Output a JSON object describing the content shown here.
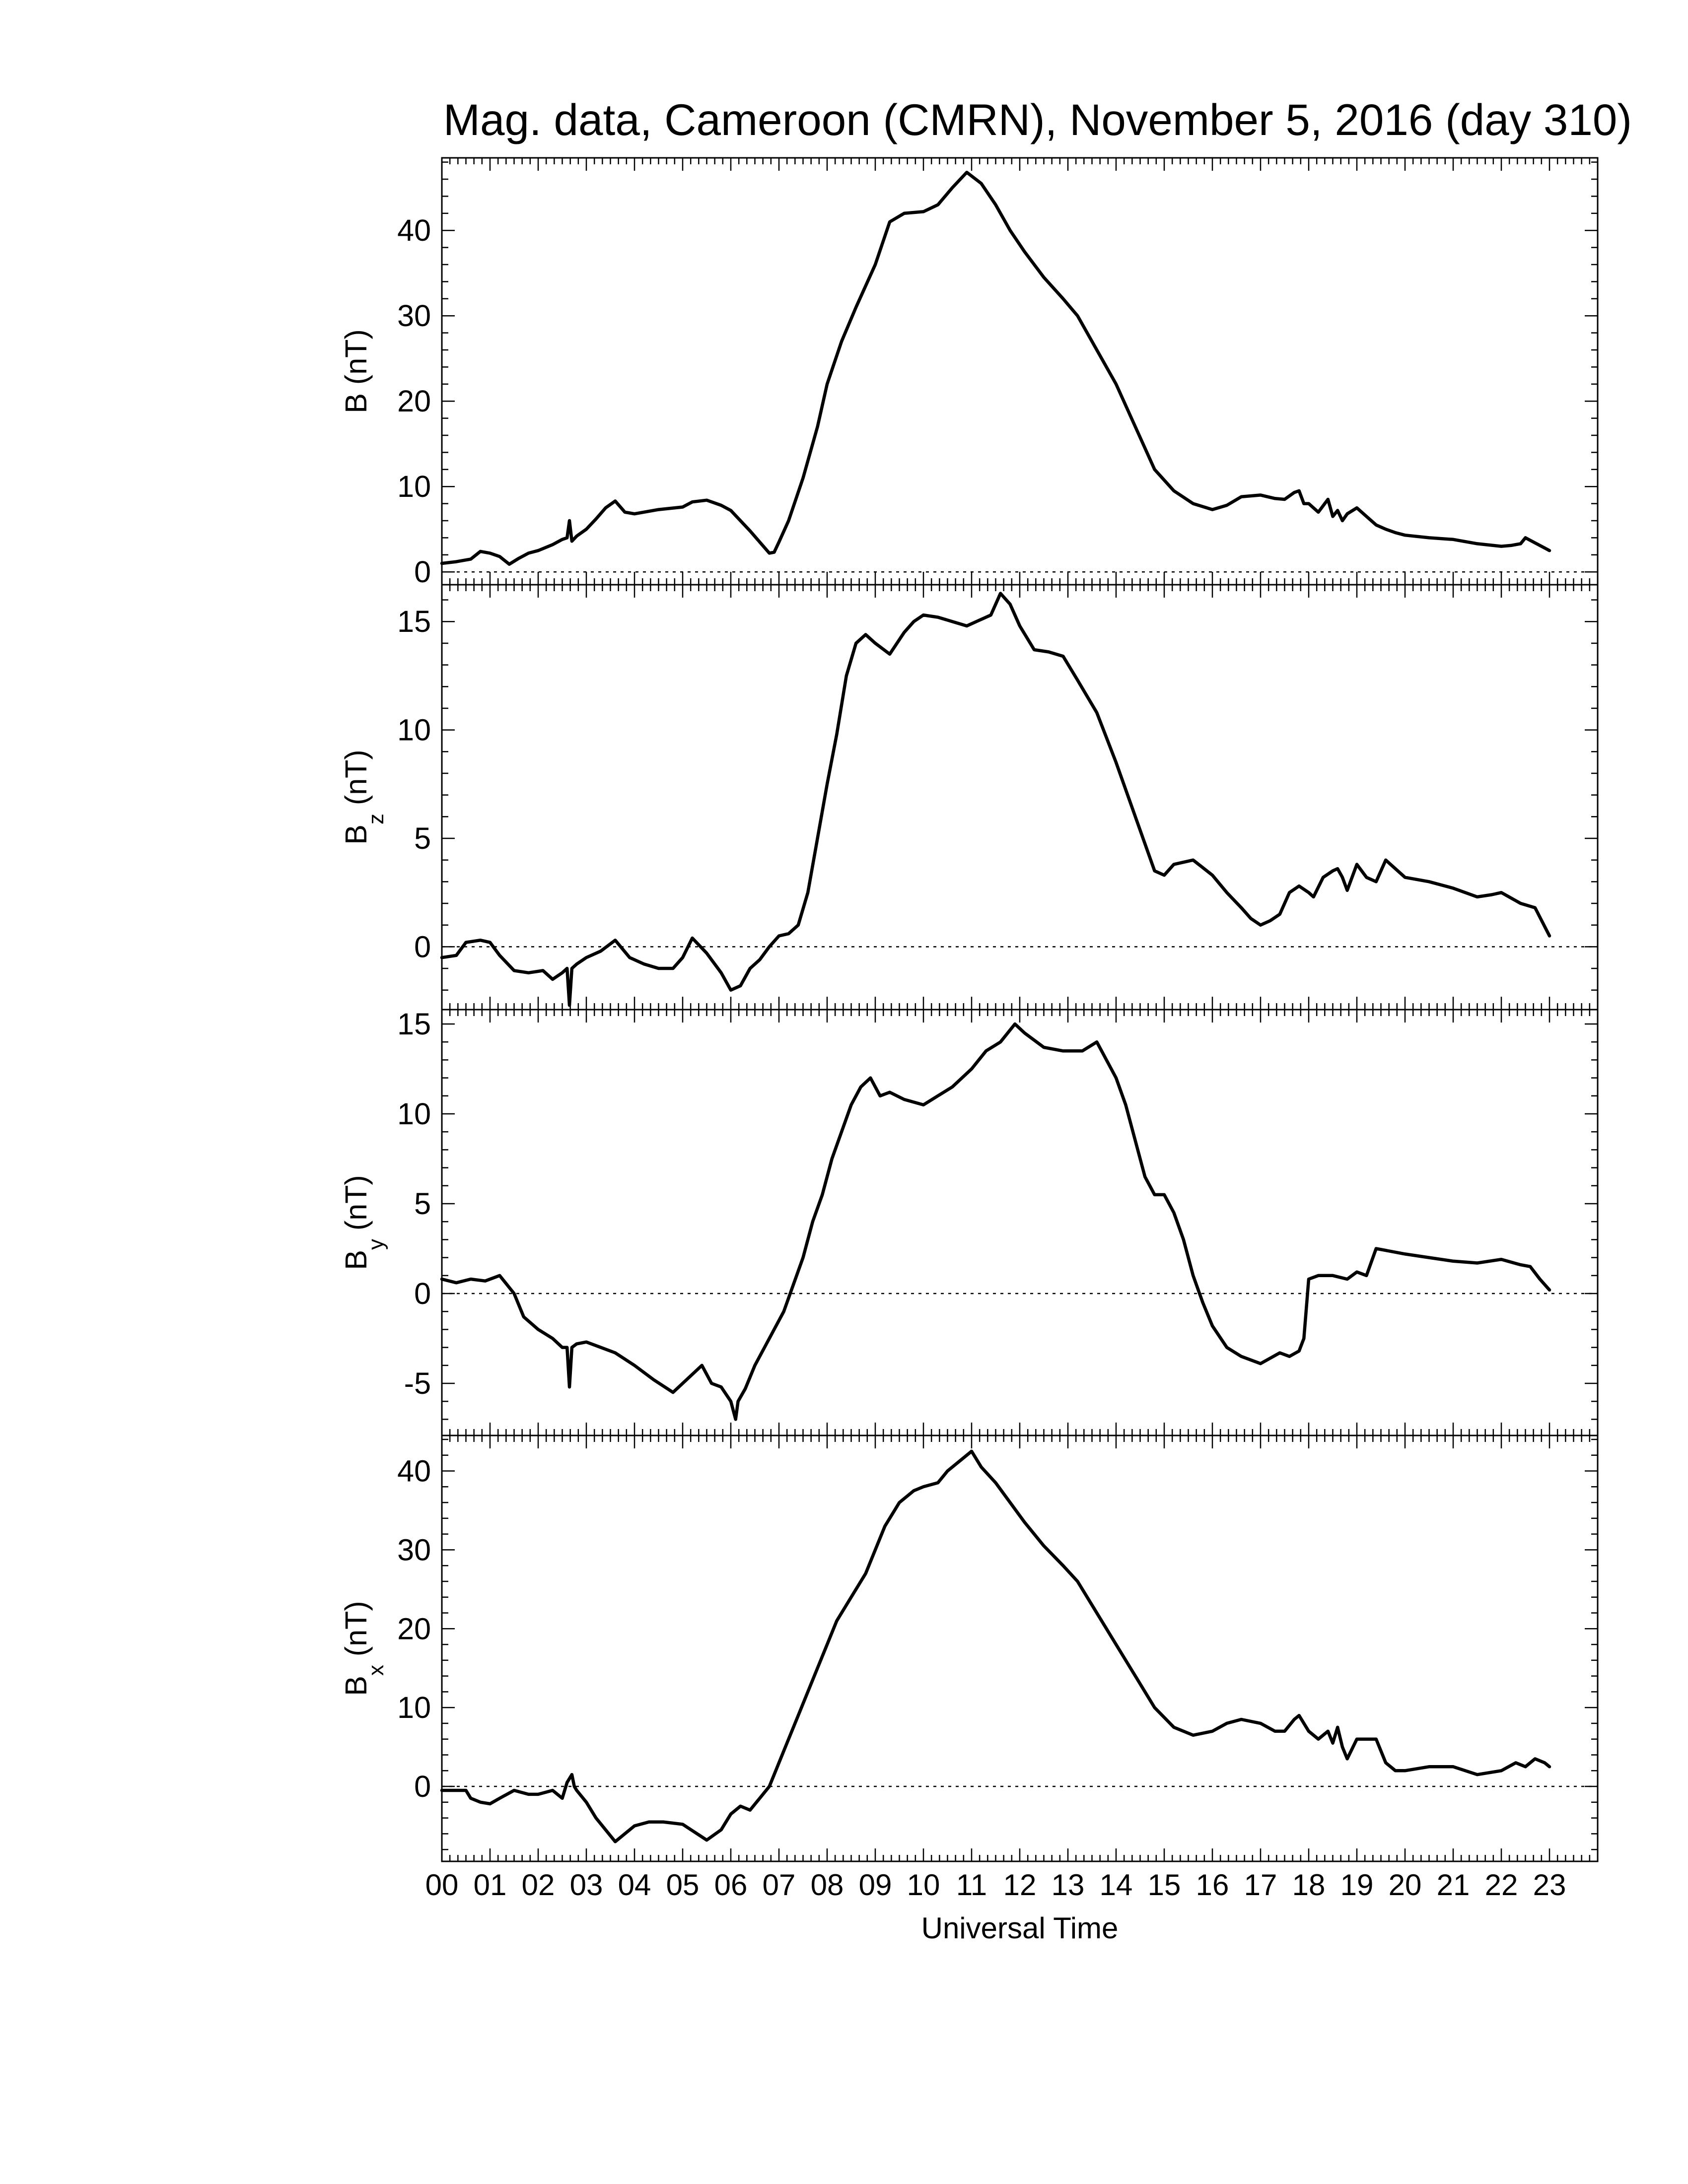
{
  "chart_data": {
    "type": "line",
    "title": "Mag. data, Cameroon (CMRN), November 5, 2016 (day 310)",
    "xlabel": "Universal Time",
    "x_ticks": [
      "00",
      "01",
      "02",
      "03",
      "04",
      "05",
      "06",
      "07",
      "08",
      "09",
      "10",
      "11",
      "12",
      "13",
      "14",
      "15",
      "16",
      "17",
      "18",
      "19",
      "20",
      "21",
      "22",
      "23"
    ],
    "xlim": [
      0,
      24
    ],
    "grid": false,
    "panels": [
      {
        "key": "B",
        "ylabel": "B (nT)",
        "ylabel_main": "B",
        "ylabel_sub": "",
        "ylabel_unit": " (nT)",
        "ylim": [
          -1.5,
          48.5
        ],
        "yticks": [
          0,
          10,
          20,
          30,
          40
        ],
        "zero_line": true,
        "series": [
          {
            "x": [
              0,
              0.3,
              0.6,
              0.8,
              1.0,
              1.2,
              1.4,
              1.6,
              1.8,
              2.0,
              2.3,
              2.5,
              2.6,
              2.65,
              2.7,
              2.8,
              3.0,
              3.2,
              3.4,
              3.6,
              3.8,
              4.0,
              4.5,
              5.0,
              5.2,
              5.5,
              5.8,
              6.0,
              6.2,
              6.4,
              6.6,
              6.8,
              6.9,
              7.0,
              7.2,
              7.5,
              7.8,
              8.0,
              8.3,
              8.6,
              9.0,
              9.3,
              9.6,
              10.0,
              10.3,
              10.6,
              10.9,
              11.2,
              11.5,
              11.8,
              12.1,
              12.5,
              12.9,
              13.2,
              13.6,
              14.0,
              14.4,
              14.8,
              15.2,
              15.6,
              16.0,
              16.3,
              16.6,
              17.0,
              17.3,
              17.5,
              17.7,
              17.8,
              17.9,
              18.0,
              18.2,
              18.4,
              18.5,
              18.6,
              18.7,
              18.8,
              19.0,
              19.2,
              19.4,
              19.6,
              19.8,
              20.0,
              20.5,
              21.0,
              21.5,
              22.0,
              22.2,
              22.4,
              22.5,
              22.7,
              22.9,
              23.0
            ],
            "y": [
              1,
              1.2,
              1.5,
              2.4,
              2.2,
              1.8,
              0.9,
              1.6,
              2.2,
              2.5,
              3.2,
              3.8,
              4.0,
              6.0,
              3.6,
              4.2,
              5.0,
              6.2,
              7.5,
              8.3,
              7.0,
              6.8,
              7.3,
              7.6,
              8.2,
              8.4,
              7.8,
              7.2,
              6.0,
              4.8,
              3.5,
              2.2,
              2.3,
              3.5,
              6.0,
              11,
              17,
              22,
              27,
              31,
              36,
              41,
              42,
              42.2,
              43,
              45,
              46.8,
              45.5,
              43,
              40,
              37.5,
              34.5,
              32,
              30,
              26,
              22,
              17,
              12,
              9.5,
              8,
              7.3,
              7.8,
              8.8,
              9.0,
              8.6,
              8.5,
              9.3,
              9.5,
              8.0,
              8.0,
              7.0,
              8.5,
              6.5,
              7.2,
              6.0,
              6.8,
              7.5,
              6.5,
              5.5,
              5.0,
              4.6,
              4.3,
              4.0,
              3.8,
              3.3,
              3.0,
              3.1,
              3.3,
              4.0,
              3.4,
              2.8,
              2.5
            ]
          }
        ]
      },
      {
        "key": "Bz",
        "ylabel": "Bz (nT)",
        "ylabel_main": "B",
        "ylabel_sub": "z",
        "ylabel_unit": " (nT)",
        "ylim": [
          -2.9,
          16.7
        ],
        "yticks": [
          0,
          5,
          10,
          15
        ],
        "zero_line": true,
        "series": [
          {
            "x": [
              0,
              0.3,
              0.5,
              0.8,
              1.0,
              1.2,
              1.5,
              1.8,
              2.1,
              2.3,
              2.5,
              2.6,
              2.65,
              2.7,
              2.8,
              3.0,
              3.3,
              3.6,
              3.9,
              4.2,
              4.5,
              4.8,
              5.0,
              5.2,
              5.5,
              5.8,
              6.0,
              6.2,
              6.4,
              6.6,
              6.8,
              7.0,
              7.2,
              7.4,
              7.6,
              7.8,
              8.0,
              8.2,
              8.4,
              8.6,
              8.8,
              9.0,
              9.3,
              9.6,
              9.8,
              10.0,
              10.3,
              10.6,
              10.9,
              11.1,
              11.4,
              11.6,
              11.8,
              12.0,
              12.3,
              12.6,
              12.9,
              13.2,
              13.6,
              14.0,
              14.4,
              14.8,
              15.0,
              15.2,
              15.6,
              16.0,
              16.3,
              16.6,
              16.8,
              17.0,
              17.2,
              17.4,
              17.6,
              17.8,
              18.0,
              18.1,
              18.3,
              18.5,
              18.6,
              18.7,
              18.8,
              19.0,
              19.2,
              19.4,
              19.6,
              20.0,
              20.5,
              21.0,
              21.5,
              21.8,
              22.0,
              22.4,
              22.7,
              23.0
            ],
            "y": [
              -0.5,
              -0.4,
              0.2,
              0.3,
              0.2,
              -0.4,
              -1.1,
              -1.2,
              -1.1,
              -1.5,
              -1.2,
              -1.0,
              -2.7,
              -1.0,
              -0.8,
              -0.5,
              -0.2,
              0.3,
              -0.5,
              -0.8,
              -1.0,
              -1.0,
              -0.5,
              0.4,
              -0.3,
              -1.2,
              -2.0,
              -1.8,
              -1.0,
              -0.6,
              0.0,
              0.5,
              0.6,
              1.0,
              2.5,
              5.0,
              7.5,
              9.8,
              12.5,
              14.0,
              14.4,
              14.0,
              13.5,
              14.5,
              15.0,
              15.3,
              15.2,
              15.0,
              14.8,
              15.0,
              15.3,
              16.3,
              15.8,
              14.8,
              13.7,
              13.6,
              13.4,
              12.3,
              10.8,
              8.5,
              6.0,
              3.5,
              3.3,
              3.8,
              4.0,
              3.3,
              2.5,
              1.8,
              1.3,
              1.0,
              1.2,
              1.5,
              2.5,
              2.8,
              2.5,
              2.3,
              3.2,
              3.5,
              3.6,
              3.2,
              2.6,
              3.8,
              3.2,
              3.0,
              4.0,
              3.2,
              3.0,
              2.7,
              2.3,
              2.4,
              2.5,
              2.0,
              1.8,
              0.5
            ]
          }
        ]
      },
      {
        "key": "By",
        "ylabel": "By (nT)",
        "ylabel_main": "B",
        "ylabel_sub": "y",
        "ylabel_unit": " (nT)",
        "ylim": [
          -7.9,
          15.8
        ],
        "yticks": [
          -5,
          0,
          5,
          10,
          15
        ],
        "zero_line": true,
        "series": [
          {
            "x": [
              0,
              0.3,
              0.6,
              0.9,
              1.1,
              1.2,
              1.5,
              1.7,
              2.0,
              2.3,
              2.5,
              2.6,
              2.65,
              2.7,
              2.8,
              3.0,
              3.3,
              3.6,
              4.0,
              4.4,
              4.8,
              5.0,
              5.2,
              5.4,
              5.6,
              5.8,
              6.0,
              6.1,
              6.15,
              6.3,
              6.5,
              6.7,
              6.9,
              7.1,
              7.3,
              7.5,
              7.7,
              7.9,
              8.1,
              8.3,
              8.5,
              8.7,
              8.9,
              9.1,
              9.3,
              9.6,
              10.0,
              10.3,
              10.6,
              11.0,
              11.3,
              11.6,
              11.9,
              12.1,
              12.5,
              12.9,
              13.3,
              13.6,
              13.8,
              14.0,
              14.2,
              14.4,
              14.6,
              14.8,
              15.0,
              15.2,
              15.4,
              15.6,
              15.8,
              16.0,
              16.3,
              16.6,
              16.8,
              17.0,
              17.2,
              17.4,
              17.6,
              17.8,
              17.9,
              18.0,
              18.2,
              18.5,
              18.8,
              19.0,
              19.2,
              19.4,
              19.6,
              20.0,
              20.5,
              21.0,
              21.5,
              22.0,
              22.4,
              22.6,
              22.8,
              23.0
            ],
            "y": [
              0.8,
              0.6,
              0.8,
              0.7,
              0.9,
              1.0,
              0.0,
              -1.3,
              -2.0,
              -2.5,
              -3.0,
              -3.0,
              -5.2,
              -3.0,
              -2.8,
              -2.7,
              -3.0,
              -3.3,
              -4.0,
              -4.8,
              -5.5,
              -5.0,
              -4.5,
              -4.0,
              -5.0,
              -5.2,
              -6.0,
              -7.0,
              -6.0,
              -5.3,
              -4.0,
              -3.0,
              -2.0,
              -1.0,
              0.5,
              2.0,
              4.0,
              5.5,
              7.5,
              9.0,
              10.5,
              11.5,
              12.0,
              11.0,
              11.2,
              10.8,
              10.5,
              11.0,
              11.5,
              12.5,
              13.5,
              14.0,
              15.0,
              14.5,
              13.7,
              13.5,
              13.5,
              14.0,
              13.0,
              12.0,
              10.5,
              8.5,
              6.5,
              5.5,
              5.5,
              4.5,
              3.0,
              1.0,
              -0.5,
              -1.8,
              -3.0,
              -3.5,
              -3.7,
              -3.9,
              -3.6,
              -3.3,
              -3.5,
              -3.2,
              -2.5,
              0.8,
              1.0,
              1.0,
              0.8,
              1.2,
              1.0,
              2.5,
              2.4,
              2.2,
              2.0,
              1.8,
              1.7,
              1.9,
              1.6,
              1.5,
              0.8,
              0.2
            ]
          }
        ]
      },
      {
        "key": "Bx",
        "ylabel": "Bx (nT)",
        "ylabel_main": "B",
        "ylabel_sub": "x",
        "ylabel_unit": " (nT)",
        "ylim": [
          -9.5,
          44.5
        ],
        "yticks": [
          0,
          10,
          20,
          30,
          40
        ],
        "zero_line": true,
        "series": [
          {
            "x": [
              0,
              0.3,
              0.5,
              0.6,
              0.8,
              1.0,
              1.2,
              1.5,
              1.8,
              2.0,
              2.3,
              2.5,
              2.6,
              2.7,
              2.75,
              2.8,
              3.0,
              3.2,
              3.4,
              3.6,
              3.8,
              4.0,
              4.3,
              4.6,
              5.0,
              5.3,
              5.5,
              5.8,
              6.0,
              6.2,
              6.4,
              6.6,
              6.8,
              7.0,
              7.2,
              7.4,
              7.6,
              7.8,
              8.0,
              8.2,
              8.5,
              8.8,
              9.0,
              9.2,
              9.5,
              9.8,
              10.0,
              10.3,
              10.5,
              10.8,
              11.0,
              11.2,
              11.5,
              11.8,
              12.1,
              12.5,
              12.9,
              13.2,
              13.6,
              14.0,
              14.4,
              14.8,
              15.2,
              15.6,
              16.0,
              16.3,
              16.6,
              17.0,
              17.3,
              17.5,
              17.7,
              17.8,
              17.9,
              18.0,
              18.2,
              18.4,
              18.5,
              18.6,
              18.7,
              18.8,
              19.0,
              19.2,
              19.4,
              19.6,
              19.8,
              20.0,
              20.5,
              21.0,
              21.5,
              22.0,
              22.3,
              22.5,
              22.7,
              22.9,
              23.0
            ],
            "y": [
              -0.5,
              -0.5,
              -0.5,
              -1.5,
              -2.0,
              -2.2,
              -1.5,
              -0.5,
              -1.0,
              -1.0,
              -0.5,
              -1.5,
              0.5,
              1.5,
              0.0,
              -0.5,
              -2.0,
              -4.0,
              -5.5,
              -7.0,
              -6.0,
              -5.0,
              -4.5,
              -4.5,
              -4.8,
              -6.0,
              -6.8,
              -5.5,
              -3.5,
              -2.5,
              -3.0,
              -1.5,
              0.0,
              3.0,
              6.0,
              9.0,
              12.0,
              15.0,
              18.0,
              21.0,
              24.0,
              27.0,
              30.0,
              33.0,
              36.0,
              37.5,
              38.0,
              38.5,
              40.0,
              41.5,
              42.5,
              40.5,
              38.5,
              36.0,
              33.5,
              30.5,
              28.0,
              26.0,
              22.0,
              18.0,
              14.0,
              10.0,
              7.5,
              6.5,
              7.0,
              8.0,
              8.5,
              8.0,
              7.0,
              7.0,
              8.5,
              9.0,
              8.0,
              7.0,
              6.0,
              7.0,
              5.5,
              7.5,
              5.0,
              3.5,
              6.0,
              6.0,
              6.0,
              3.0,
              2.0,
              2.0,
              2.5,
              2.5,
              1.5,
              2.0,
              3.0,
              2.5,
              3.5,
              3.0,
              2.5
            ]
          }
        ]
      }
    ]
  }
}
